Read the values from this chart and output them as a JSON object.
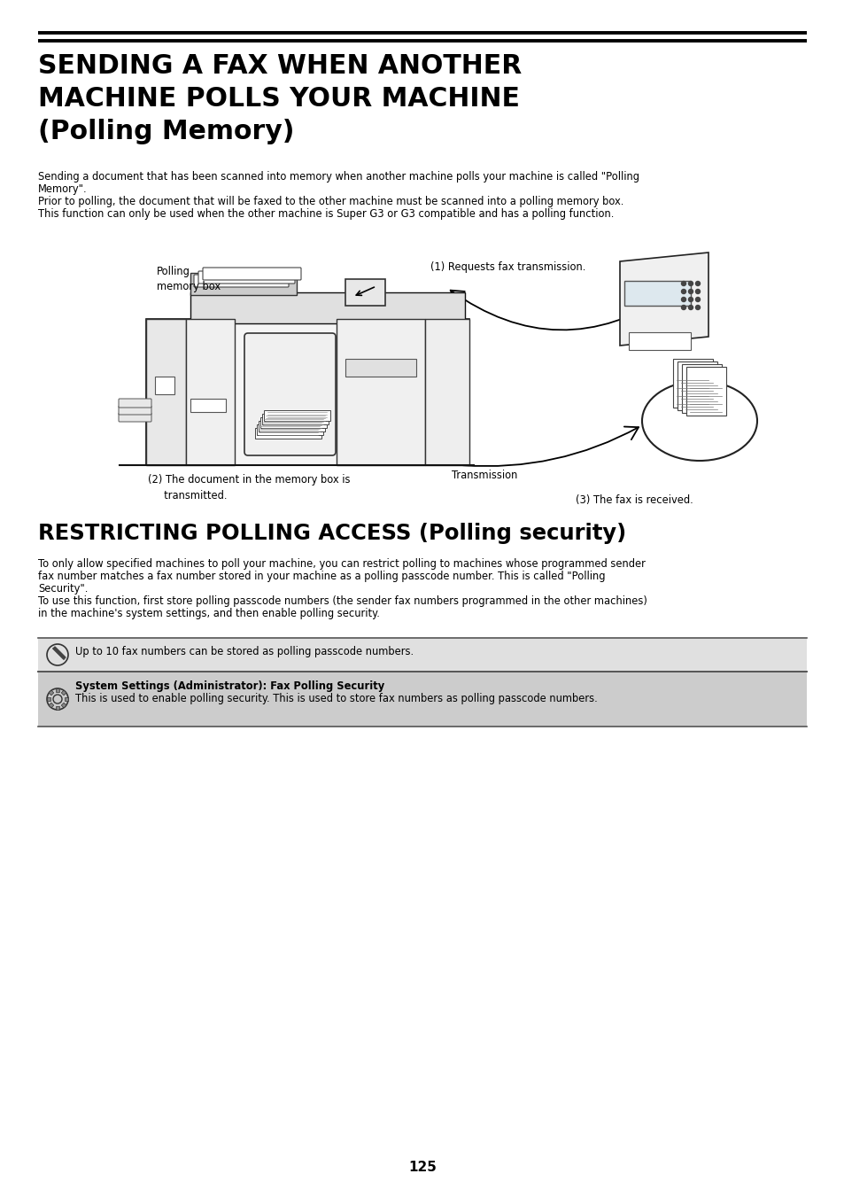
{
  "title_line1": "SENDING A FAX WHEN ANOTHER",
  "title_line2": "MACHINE POLLS YOUR MACHINE",
  "title_line3": "(Polling Memory)",
  "body1_l1": "Sending a document that has been scanned into memory when another machine polls your machine is called \"Polling",
  "body1_l2": "Memory\".",
  "body1_l3": "Prior to polling, the document that will be faxed to the other machine must be scanned into a polling memory box.",
  "body1_l4": "This function can only be used when the other machine is Super G3 or G3 compatible and has a polling function.",
  "label_polling_memory": "Polling\nmemory box",
  "label_step1": "(1) Requests fax transmission.",
  "label_step2": "(2) The document in the memory box is\n    transmitted.",
  "label_transmission": "Transmission",
  "label_step3": "(3) The fax is received.",
  "section2_title": "RESTRICTING POLLING ACCESS (Polling security)",
  "s2_l1": "To only allow specified machines to poll your machine, you can restrict polling to machines whose programmed sender",
  "s2_l2": "fax number matches a fax number stored in your machine as a polling passcode number. This is called \"Polling",
  "s2_l3": "Security\".",
  "s2_l4": "To use this function, first store polling passcode numbers (the sender fax numbers programmed in the other machines)",
  "s2_l5": "in the machine's system settings, and then enable polling security.",
  "note1_text": "Up to 10 fax numbers can be stored as polling passcode numbers.",
  "note2_title": "System Settings (Administrator): Fax Polling Security",
  "note2_body": "This is used to enable polling security. This is used to store fax numbers as polling passcode numbers.",
  "page_number": "125",
  "bg_color": "#ffffff"
}
